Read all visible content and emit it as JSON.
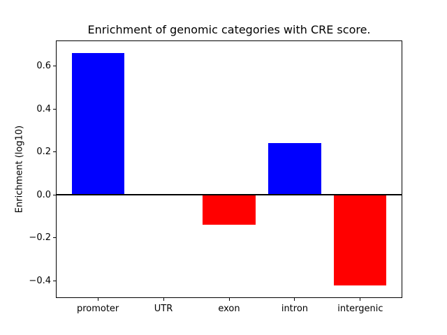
{
  "figure": {
    "background_color": "#ffffff",
    "axis_color": "#000000"
  },
  "chart_data": {
    "type": "bar",
    "title": "Enrichment of genomic categories with CRE score.",
    "xlabel": "",
    "ylabel": "Enrichment (log10)",
    "categories": [
      "promoter",
      "UTR",
      "exon",
      "intron",
      "intergenic"
    ],
    "values": [
      0.66,
      0.0,
      -0.14,
      0.24,
      -0.42
    ],
    "bar_colors": [
      "#0000ff",
      "#0000ff",
      "#ff0000",
      "#0000ff",
      "#ff0000"
    ],
    "positive_color": "#0000ff",
    "negative_color": "#ff0000",
    "bar_width": 0.8,
    "xlim": [
      -0.64,
      4.64
    ],
    "ylim": [
      -0.48,
      0.72
    ],
    "yticks": {
      "values": [
        -0.4,
        -0.2,
        0.0,
        0.2,
        0.4,
        0.6
      ],
      "labels": [
        "−0.4",
        "−0.2",
        "0.0",
        "0.2",
        "0.4",
        "0.6"
      ]
    },
    "zero_line": true,
    "grid": false,
    "legend": null
  }
}
